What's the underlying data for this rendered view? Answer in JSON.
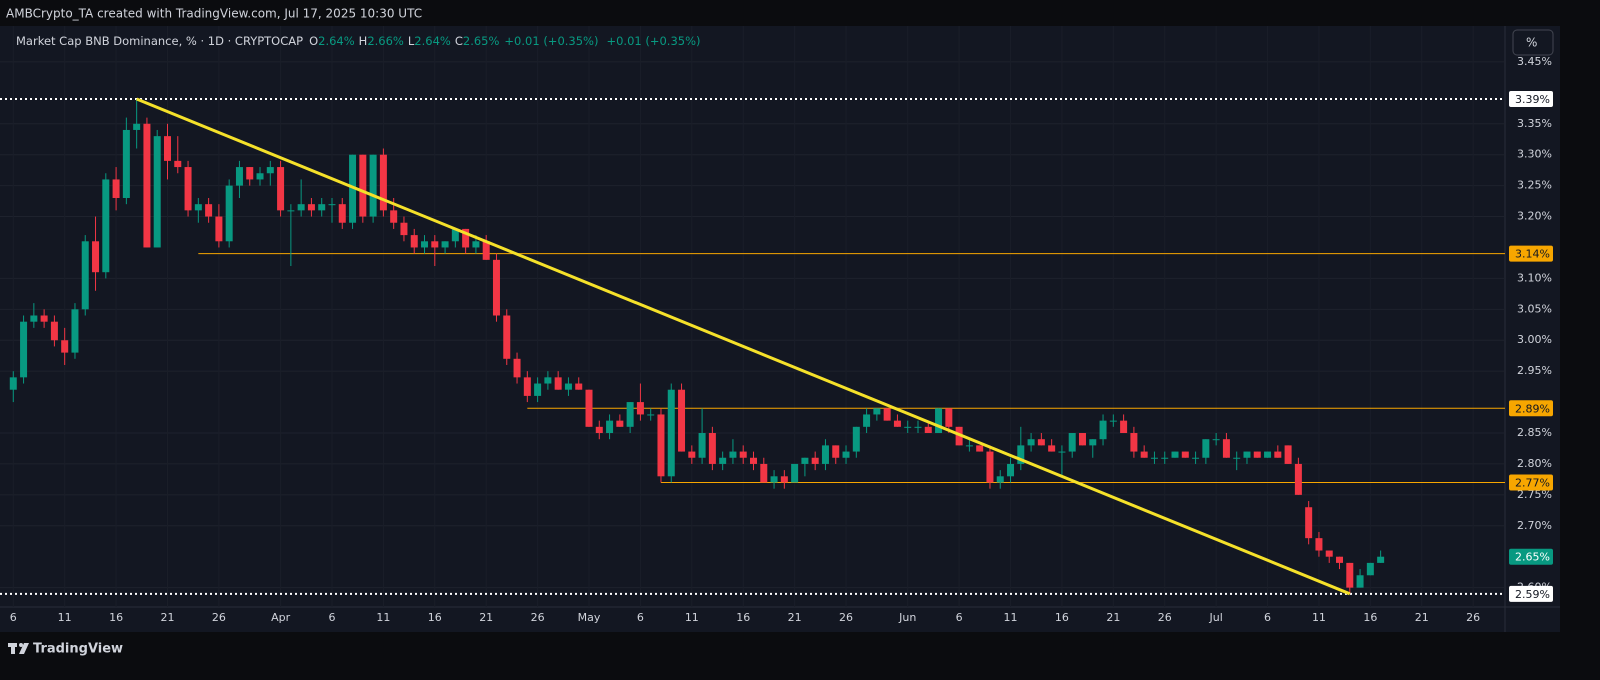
{
  "chart_data": {
    "type": "candlestick",
    "header": "AMBCrypto_TA created with TradingView.com, Jul 17, 2025 10:30 UTC",
    "symbol": "Market Cap BNB Dominance, % · 1D · CRYPTOCAP",
    "ohlc_legend": [
      {
        "key": "O",
        "value": "2.64%"
      },
      {
        "key": "H",
        "value": "2.66%"
      },
      {
        "key": "L",
        "value": "2.64%"
      },
      {
        "key": "C",
        "value": "2.65%"
      }
    ],
    "change": "+0.01 (+0.35%)",
    "change_alt": "+0.01 (+0.35%)",
    "scale_button": "%",
    "brand": "TradingView",
    "up_color": "#089981",
    "down_color": "#f23645",
    "grid": true,
    "x": [
      "2025-03-06",
      "2025-03-07",
      "2025-03-08",
      "2025-03-09",
      "2025-03-10",
      "2025-03-11",
      "2025-03-12",
      "2025-03-13",
      "2025-03-14",
      "2025-03-15",
      "2025-03-16",
      "2025-03-17",
      "2025-03-18",
      "2025-03-19",
      "2025-03-20",
      "2025-03-21",
      "2025-03-22",
      "2025-03-23",
      "2025-03-24",
      "2025-03-25",
      "2025-03-26",
      "2025-03-27",
      "2025-03-28",
      "2025-03-29",
      "2025-03-30",
      "2025-03-31",
      "2025-04-01",
      "2025-04-02",
      "2025-04-03",
      "2025-04-04",
      "2025-04-05",
      "2025-04-06",
      "2025-04-07",
      "2025-04-08",
      "2025-04-09",
      "2025-04-10",
      "2025-04-11",
      "2025-04-12",
      "2025-04-13",
      "2025-04-14",
      "2025-04-15",
      "2025-04-16",
      "2025-04-17",
      "2025-04-18",
      "2025-04-19",
      "2025-04-20",
      "2025-04-21",
      "2025-04-22",
      "2025-04-23",
      "2025-04-24",
      "2025-04-25",
      "2025-04-26",
      "2025-04-27",
      "2025-04-28",
      "2025-04-29",
      "2025-04-30",
      "2025-05-01",
      "2025-05-02",
      "2025-05-03",
      "2025-05-04",
      "2025-05-05",
      "2025-05-06",
      "2025-05-07",
      "2025-05-08",
      "2025-05-09",
      "2025-05-10",
      "2025-05-11",
      "2025-05-12",
      "2025-05-13",
      "2025-05-14",
      "2025-05-15",
      "2025-05-16",
      "2025-05-17",
      "2025-05-18",
      "2025-05-19",
      "2025-05-20",
      "2025-05-21",
      "2025-05-22",
      "2025-05-23",
      "2025-05-24",
      "2025-05-25",
      "2025-05-26",
      "2025-05-27",
      "2025-05-28",
      "2025-05-29",
      "2025-05-30",
      "2025-05-31",
      "2025-06-01",
      "2025-06-02",
      "2025-06-03",
      "2025-06-04",
      "2025-06-05",
      "2025-06-06",
      "2025-06-07",
      "2025-06-08",
      "2025-06-09",
      "2025-06-10",
      "2025-06-11",
      "2025-06-12",
      "2025-06-13",
      "2025-06-14",
      "2025-06-15",
      "2025-06-16",
      "2025-06-17",
      "2025-06-18",
      "2025-06-19",
      "2025-06-20",
      "2025-06-21",
      "2025-06-22",
      "2025-06-23",
      "2025-06-24",
      "2025-06-25",
      "2025-06-26",
      "2025-06-27",
      "2025-06-28",
      "2025-06-29",
      "2025-06-30",
      "2025-07-01",
      "2025-07-02",
      "2025-07-03",
      "2025-07-04",
      "2025-07-05",
      "2025-07-06",
      "2025-07-07",
      "2025-07-08",
      "2025-07-09",
      "2025-07-10",
      "2025-07-11",
      "2025-07-12",
      "2025-07-13",
      "2025-07-14",
      "2025-07-15",
      "2025-07-16",
      "2025-07-17"
    ],
    "open": [
      2.92,
      2.94,
      3.03,
      3.04,
      3.03,
      3.0,
      2.98,
      3.05,
      3.16,
      3.11,
      3.26,
      3.23,
      3.34,
      3.35,
      3.15,
      3.33,
      3.29,
      3.28,
      3.21,
      3.22,
      3.2,
      3.16,
      3.25,
      3.28,
      3.26,
      3.27,
      3.28,
      3.21,
      3.21,
      3.22,
      3.21,
      3.22,
      3.22,
      3.19,
      3.3,
      3.2,
      3.3,
      3.21,
      3.19,
      3.17,
      3.15,
      3.16,
      3.15,
      3.16,
      3.18,
      3.15,
      3.16,
      3.13,
      3.04,
      2.97,
      2.94,
      2.91,
      2.93,
      2.94,
      2.92,
      2.93,
      2.92,
      2.86,
      2.85,
      2.87,
      2.86,
      2.9,
      2.88,
      2.88,
      2.78,
      2.92,
      2.82,
      2.81,
      2.85,
      2.8,
      2.81,
      2.82,
      2.81,
      2.8,
      2.77,
      2.78,
      2.77,
      2.8,
      2.81,
      2.8,
      2.83,
      2.81,
      2.82,
      2.86,
      2.88,
      2.89,
      2.87,
      2.86,
      2.86,
      2.86,
      2.85,
      2.89,
      2.86,
      2.83,
      2.83,
      2.82,
      2.77,
      2.78,
      2.8,
      2.83,
      2.84,
      2.83,
      2.82,
      2.82,
      2.85,
      2.83,
      2.84,
      2.87,
      2.87,
      2.85,
      2.82,
      2.81,
      2.81,
      2.81,
      2.82,
      2.81,
      2.81,
      2.84,
      2.84,
      2.81,
      2.81,
      2.82,
      2.81,
      2.82,
      2.83,
      2.8,
      2.73,
      2.68,
      2.66,
      2.65,
      2.64,
      2.6,
      2.62,
      2.64
    ],
    "high": [
      2.95,
      3.04,
      3.06,
      3.05,
      3.04,
      3.02,
      3.06,
      3.17,
      3.2,
      3.27,
      3.28,
      3.36,
      3.39,
      3.36,
      3.34,
      3.35,
      3.33,
      3.29,
      3.23,
      3.23,
      3.22,
      3.26,
      3.29,
      3.28,
      3.28,
      3.29,
      3.29,
      3.22,
      3.26,
      3.23,
      3.23,
      3.23,
      3.23,
      3.3,
      3.3,
      3.3,
      3.31,
      3.23,
      3.2,
      3.18,
      3.17,
      3.17,
      3.16,
      3.18,
      3.18,
      3.17,
      3.17,
      3.14,
      3.05,
      2.98,
      2.95,
      2.94,
      2.95,
      2.95,
      2.94,
      2.94,
      2.92,
      2.87,
      2.88,
      2.88,
      2.9,
      2.93,
      2.89,
      2.89,
      2.93,
      2.93,
      2.83,
      2.89,
      2.86,
      2.82,
      2.84,
      2.83,
      2.82,
      2.81,
      2.79,
      2.79,
      2.8,
      2.81,
      2.82,
      2.84,
      2.83,
      2.83,
      2.86,
      2.89,
      2.89,
      2.89,
      2.88,
      2.87,
      2.87,
      2.87,
      2.89,
      2.89,
      2.86,
      2.84,
      2.83,
      2.83,
      2.79,
      2.81,
      2.86,
      2.85,
      2.85,
      2.84,
      2.83,
      2.85,
      2.85,
      2.84,
      2.88,
      2.88,
      2.88,
      2.86,
      2.83,
      2.82,
      2.82,
      2.82,
      2.82,
      2.82,
      2.84,
      2.85,
      2.85,
      2.82,
      2.82,
      2.82,
      2.82,
      2.83,
      2.83,
      2.81,
      2.74,
      2.69,
      2.66,
      2.65,
      2.64,
      2.63,
      2.64,
      2.66
    ],
    "low": [
      2.9,
      2.93,
      3.02,
      3.02,
      2.99,
      2.96,
      2.97,
      3.04,
      3.08,
      3.1,
      3.21,
      3.22,
      3.31,
      3.15,
      3.15,
      3.26,
      3.27,
      3.2,
      3.19,
      3.19,
      3.15,
      3.15,
      3.23,
      3.25,
      3.25,
      3.25,
      3.2,
      3.12,
      3.2,
      3.2,
      3.2,
      3.19,
      3.18,
      3.18,
      3.19,
      3.19,
      3.2,
      3.18,
      3.16,
      3.14,
      3.14,
      3.12,
      3.14,
      3.15,
      3.14,
      3.14,
      3.13,
      3.03,
      2.96,
      2.93,
      2.9,
      2.9,
      2.92,
      2.92,
      2.91,
      2.92,
      2.86,
      2.84,
      2.84,
      2.86,
      2.85,
      2.87,
      2.87,
      2.77,
      2.77,
      2.82,
      2.8,
      2.8,
      2.79,
      2.79,
      2.8,
      2.8,
      2.79,
      2.77,
      2.76,
      2.76,
      2.77,
      2.78,
      2.79,
      2.79,
      2.8,
      2.8,
      2.81,
      2.85,
      2.87,
      2.87,
      2.86,
      2.85,
      2.85,
      2.85,
      2.85,
      2.85,
      2.83,
      2.82,
      2.82,
      2.76,
      2.76,
      2.77,
      2.79,
      2.82,
      2.83,
      2.82,
      2.78,
      2.81,
      2.83,
      2.81,
      2.83,
      2.86,
      2.85,
      2.81,
      2.81,
      2.8,
      2.8,
      2.81,
      2.81,
      2.8,
      2.8,
      2.83,
      2.81,
      2.79,
      2.8,
      2.81,
      2.81,
      2.81,
      2.8,
      2.75,
      2.67,
      2.65,
      2.64,
      2.63,
      2.59,
      2.6,
      2.62,
      2.64
    ],
    "close": [
      2.94,
      3.03,
      3.04,
      3.03,
      3.0,
      2.98,
      3.05,
      3.16,
      3.11,
      3.26,
      3.23,
      3.34,
      3.35,
      3.15,
      3.33,
      3.29,
      3.28,
      3.21,
      3.22,
      3.2,
      3.16,
      3.25,
      3.28,
      3.26,
      3.27,
      3.28,
      3.21,
      3.21,
      3.22,
      3.21,
      3.22,
      3.22,
      3.19,
      3.3,
      3.2,
      3.3,
      3.21,
      3.19,
      3.17,
      3.15,
      3.16,
      3.15,
      3.16,
      3.18,
      3.15,
      3.16,
      3.13,
      3.04,
      2.97,
      2.94,
      2.91,
      2.93,
      2.94,
      2.92,
      2.93,
      2.92,
      2.86,
      2.85,
      2.87,
      2.86,
      2.9,
      2.88,
      2.88,
      2.78,
      2.92,
      2.82,
      2.81,
      2.85,
      2.8,
      2.81,
      2.82,
      2.81,
      2.8,
      2.77,
      2.78,
      2.77,
      2.8,
      2.81,
      2.8,
      2.83,
      2.81,
      2.82,
      2.86,
      2.88,
      2.89,
      2.87,
      2.86,
      2.86,
      2.86,
      2.85,
      2.89,
      2.86,
      2.83,
      2.83,
      2.82,
      2.77,
      2.78,
      2.8,
      2.83,
      2.84,
      2.83,
      2.82,
      2.82,
      2.85,
      2.83,
      2.84,
      2.87,
      2.87,
      2.85,
      2.82,
      2.81,
      2.81,
      2.81,
      2.82,
      2.81,
      2.81,
      2.84,
      2.84,
      2.81,
      2.81,
      2.82,
      2.81,
      2.82,
      2.81,
      2.8,
      2.75,
      2.68,
      2.66,
      2.65,
      2.64,
      2.6,
      2.62,
      2.64,
      2.65
    ],
    "xlim": [
      "2025-03-05",
      "2025-07-29"
    ],
    "xticks": [
      {
        "value": "2025-03-06",
        "label": "6"
      },
      {
        "value": "2025-03-11",
        "label": "11"
      },
      {
        "value": "2025-03-16",
        "label": "16"
      },
      {
        "value": "2025-03-21",
        "label": "21"
      },
      {
        "value": "2025-03-26",
        "label": "26"
      },
      {
        "value": "2025-04-01",
        "label": "Apr"
      },
      {
        "value": "2025-04-06",
        "label": "6"
      },
      {
        "value": "2025-04-11",
        "label": "11"
      },
      {
        "value": "2025-04-16",
        "label": "16"
      },
      {
        "value": "2025-04-21",
        "label": "21"
      },
      {
        "value": "2025-04-26",
        "label": "26"
      },
      {
        "value": "2025-05-01",
        "label": "May"
      },
      {
        "value": "2025-05-06",
        "label": "6"
      },
      {
        "value": "2025-05-11",
        "label": "11"
      },
      {
        "value": "2025-05-16",
        "label": "16"
      },
      {
        "value": "2025-05-21",
        "label": "21"
      },
      {
        "value": "2025-05-26",
        "label": "26"
      },
      {
        "value": "2025-06-01",
        "label": "Jun"
      },
      {
        "value": "2025-06-06",
        "label": "6"
      },
      {
        "value": "2025-06-11",
        "label": "11"
      },
      {
        "value": "2025-06-16",
        "label": "16"
      },
      {
        "value": "2025-06-21",
        "label": "21"
      },
      {
        "value": "2025-06-26",
        "label": "26"
      },
      {
        "value": "2025-07-01",
        "label": "Jul"
      },
      {
        "value": "2025-07-06",
        "label": "6"
      },
      {
        "value": "2025-07-11",
        "label": "11"
      },
      {
        "value": "2025-07-16",
        "label": "16"
      },
      {
        "value": "2025-07-21",
        "label": "21"
      },
      {
        "value": "2025-07-26",
        "label": "26"
      }
    ],
    "ylim": [
      2.58,
      3.5
    ],
    "yticks": [
      {
        "value": 3.45,
        "label": "3.45%"
      },
      {
        "value": 3.35,
        "label": "3.35%"
      },
      {
        "value": 3.3,
        "label": "3.30%"
      },
      {
        "value": 3.25,
        "label": "3.25%"
      },
      {
        "value": 3.2,
        "label": "3.20%"
      },
      {
        "value": 3.1,
        "label": "3.10%"
      },
      {
        "value": 3.05,
        "label": "3.05%"
      },
      {
        "value": 3.0,
        "label": "3.00%"
      },
      {
        "value": 2.95,
        "label": "2.95%"
      },
      {
        "value": 2.85,
        "label": "2.85%"
      },
      {
        "value": 2.8,
        "label": "2.80%"
      },
      {
        "value": 2.75,
        "label": "2.75%"
      },
      {
        "value": 2.7,
        "label": "2.70%"
      },
      {
        "value": 2.6,
        "label": "2.60%"
      }
    ],
    "levels": [
      {
        "value": 3.39,
        "label": "3.39%",
        "style": "dotted",
        "color": "#ffffff"
      },
      {
        "value": 3.14,
        "label": "3.14%",
        "style": "solid",
        "color": "#f7a600",
        "start": "2025-03-24"
      },
      {
        "value": 2.89,
        "label": "2.89%",
        "style": "solid",
        "color": "#f7a600",
        "start": "2025-04-25"
      },
      {
        "value": 2.77,
        "label": "2.77%",
        "style": "solid",
        "color": "#f7a600",
        "start": "2025-05-08"
      },
      {
        "value": 2.59,
        "label": "2.59%",
        "style": "dotted",
        "color": "#ffffff"
      }
    ],
    "trendline": {
      "x": [
        "2025-03-18",
        "2025-07-14"
      ],
      "y": [
        3.39,
        2.59
      ],
      "color": "#f5e12a"
    },
    "last_price": {
      "value": 2.65,
      "label": "2.65%",
      "color": "#089981"
    }
  }
}
